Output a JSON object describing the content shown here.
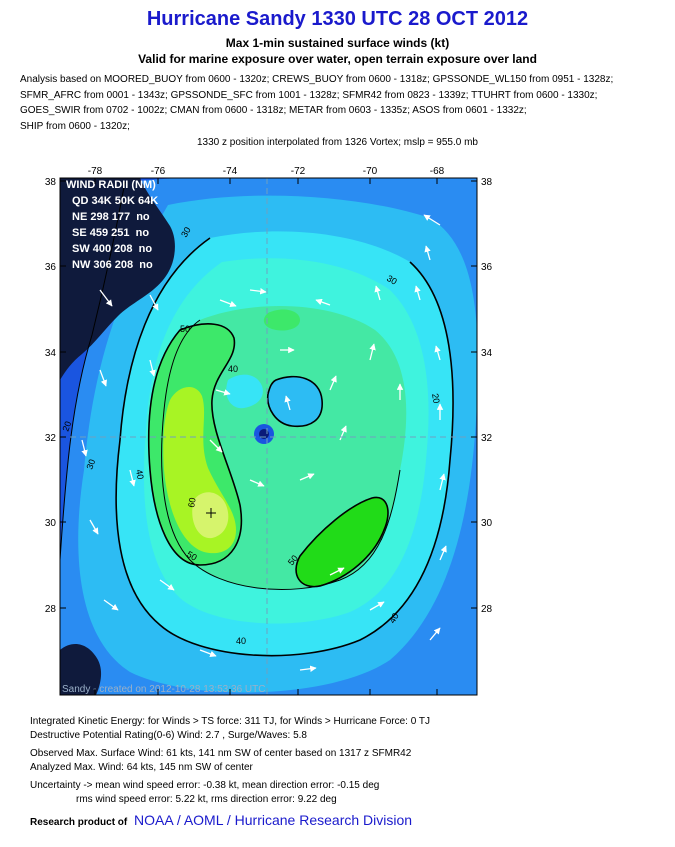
{
  "header": {
    "title": "Hurricane Sandy 1330 UTC 28 OCT 2012",
    "subtitle": "Max 1-min sustained surface winds (kt)",
    "valid": "Valid for marine exposure over water, open terrain exposure over land"
  },
  "analysis_lines": [
    "Analysis based on MOORED_BUOY from 0600 - 1320z; CREWS_BUOY from 0600 - 1318z; GPSSONDE_WL150 from 0951 - 1328z;",
    "SFMR_AFRC from 0001 - 1343z; GPSSONDE_SFC from 1001 - 1328z; SFMR42 from 0823 - 1339z; TTUHRT from 0600 - 1330z;",
    "GOES_SWIR from 0702 - 1002z; CMAN from 0600 - 1318z; METAR from 0603 - 1335z; ASOS from 0601 - 1332z;",
    "SHIP from 0600 - 1320z;"
  ],
  "position_line": "1330 z position interpolated from 1326 Vortex; mslp = 955.0 mb",
  "map": {
    "lon_ticks": [
      "-78",
      "-76",
      "-74",
      "-72",
      "-70",
      "-68"
    ],
    "lat_ticks": [
      "38",
      "36",
      "34",
      "32",
      "30",
      "28"
    ],
    "contour_labels": [
      "20",
      "30",
      "30",
      "40",
      "40",
      "40",
      "50",
      "50",
      "50",
      "60",
      "40",
      "30",
      "20"
    ],
    "wind_radii": {
      "title": "WIND RADII (NM)",
      "header": "QD 34K 50K 64K",
      "rows": [
        "NE 298 177  no",
        "SE 459 251  no",
        "SW 400 208  no",
        "NW 306 208  no"
      ]
    },
    "created_stamp": "Sandy - created on 2012-10-28 13:53:36 UTC",
    "colors": {
      "deep_blue": "#1a55e0",
      "blue": "#2a8cf2",
      "cyan_blue": "#2dbcf3",
      "cyan": "#37e4f6",
      "aqua": "#3ff3de",
      "green_light": "#44e8a4",
      "green": "#3de86a",
      "green_mid": "#21db18",
      "yellow_green": "#a8f424",
      "yellow": "#d6f46c",
      "land": "#0f1a3c"
    }
  },
  "footer": {
    "ike": "Integrated Kinetic Energy: for Winds > TS force: 311 TJ, for Winds > Hurricane Force: 0 TJ",
    "dpr": "Destructive Potential Rating(0-6)  Wind: 2.7 , Surge/Waves: 5.8",
    "obs": "Observed Max. Surface Wind: 61 kts, 141 nm SW of center based on 1317 z SFMR42",
    "analyzed": "Analyzed Max. Wind: 64 kts, 145 nm SW of center",
    "uncertainty": "Uncertainty -> mean wind speed error:  -0.38 kt, mean direction error:  -0.15 deg",
    "rms": "rms wind speed error: 5.22 kt, rms direction error: 9.22 deg",
    "credit_label": "Research product of",
    "credit_org": "NOAA  /  AOML  /  Hurricane Research Division"
  }
}
